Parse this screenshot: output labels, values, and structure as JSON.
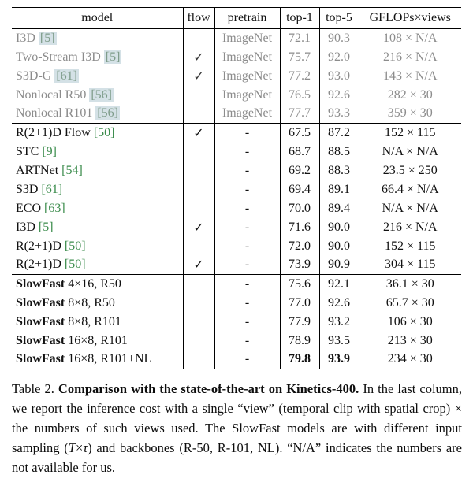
{
  "table": {
    "headers": [
      "model",
      "flow",
      "pretrain",
      "top-1",
      "top-5",
      "GFLOPs×views"
    ],
    "checkmark": "✓",
    "groups": [
      {
        "style": "dim",
        "rows": [
          {
            "model": "I3D",
            "cite": "[5]",
            "flow": false,
            "pretrain": "ImageNet",
            "top1": "72.1",
            "top5": "90.3",
            "cost": "108 × N/A"
          },
          {
            "model": "Two-Stream I3D",
            "cite": "[5]",
            "flow": true,
            "pretrain": "ImageNet",
            "top1": "75.7",
            "top5": "92.0",
            "cost": "216 × N/A"
          },
          {
            "model": "S3D-G",
            "cite": "[61]",
            "flow": true,
            "pretrain": "ImageNet",
            "top1": "77.2",
            "top5": "93.0",
            "cost": "143 × N/A"
          },
          {
            "model": "Nonlocal R50",
            "cite": "[56]",
            "flow": false,
            "pretrain": "ImageNet",
            "top1": "76.5",
            "top5": "92.6",
            "cost": "282 × 30"
          },
          {
            "model": "Nonlocal R101",
            "cite": "[56]",
            "flow": false,
            "pretrain": "ImageNet",
            "top1": "77.7",
            "top5": "93.3",
            "cost": "359 × 30"
          }
        ]
      },
      {
        "style": "plain",
        "rows": [
          {
            "model": "R(2+1)D Flow",
            "cite": "[50]",
            "flow": true,
            "pretrain": "-",
            "top1": "67.5",
            "top5": "87.2",
            "cost": "152 × 115"
          },
          {
            "model": "STC",
            "cite": "[9]",
            "flow": false,
            "pretrain": "-",
            "top1": "68.7",
            "top5": "88.5",
            "cost": "N/A × N/A"
          },
          {
            "model": "ARTNet",
            "cite": "[54]",
            "flow": false,
            "pretrain": "-",
            "top1": "69.2",
            "top5": "88.3",
            "cost": "23.5 × 250"
          },
          {
            "model": "S3D",
            "cite": "[61]",
            "flow": false,
            "pretrain": "-",
            "top1": "69.4",
            "top5": "89.1",
            "cost": "66.4 × N/A"
          },
          {
            "model": "ECO",
            "cite": "[63]",
            "flow": false,
            "pretrain": "-",
            "top1": "70.0",
            "top5": "89.4",
            "cost": "N/A × N/A"
          },
          {
            "model": "I3D",
            "cite": "[5]",
            "flow": true,
            "pretrain": "-",
            "top1": "71.6",
            "top5": "90.0",
            "cost": "216 × N/A"
          },
          {
            "model": "R(2+1)D",
            "cite": "[50]",
            "flow": false,
            "pretrain": "-",
            "top1": "72.0",
            "top5": "90.0",
            "cost": "152 × 115"
          },
          {
            "model": "R(2+1)D",
            "cite": "[50]",
            "flow": true,
            "pretrain": "-",
            "top1": "73.9",
            "top5": "90.9",
            "cost": "304 × 115"
          }
        ]
      },
      {
        "style": "slowfast",
        "rows": [
          {
            "model_bold": "SlowFast",
            "model": " 4×16, R50",
            "flow": false,
            "pretrain": "-",
            "top1": "75.6",
            "top5": "92.1",
            "cost": "36.1 × 30"
          },
          {
            "model_bold": "SlowFast",
            "model": " 8×8, R50",
            "flow": false,
            "pretrain": "-",
            "top1": "77.0",
            "top5": "92.6",
            "cost": "65.7 × 30"
          },
          {
            "model_bold": "SlowFast",
            "model": " 8×8, R101",
            "flow": false,
            "pretrain": "-",
            "top1": "77.9",
            "top5": "93.2",
            "cost": "106 × 30"
          },
          {
            "model_bold": "SlowFast",
            "model": " 16×8, R101",
            "flow": false,
            "pretrain": "-",
            "top1": "78.9",
            "top5": "93.5",
            "cost": "213 × 30"
          },
          {
            "model_bold": "SlowFast",
            "model": " 16×8, R101+NL",
            "flow": false,
            "pretrain": "-",
            "top1": "79.8",
            "top5": "93.9",
            "cost": "234 × 30",
            "bold_metrics": true
          }
        ]
      }
    ]
  },
  "caption": {
    "label": "Table 2. ",
    "title_bold": "Comparison with the state-of-the-art on Kinetics-400.",
    "body_1": " In the last column, we report the inference cost with a single “view” (temporal clip with spatial crop) × the numbers of such views used. The SlowFast models are with different input sampling (",
    "math_T": "T",
    "math_times": "×",
    "math_tau": "τ",
    "body_2": ") and backbones (R-50, R-101, NL). “N/A” indicates the numbers are not available for us."
  },
  "colors": {
    "citation_green": "#3b8c4c",
    "dim_text": "#8c8c8c",
    "dim_citation_bg": "#d4e1e6",
    "border": "#000000"
  }
}
